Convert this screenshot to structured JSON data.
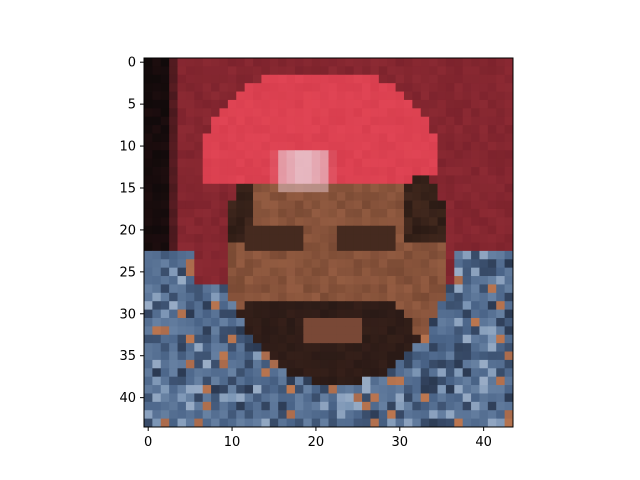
{
  "chart_data": {
    "type": "heatmap",
    "title": "",
    "xlabel": "",
    "ylabel": "",
    "image_shape": [
      44,
      44
    ],
    "xlim": [
      -0.5,
      43.5
    ],
    "ylim": [
      43.5,
      -0.5
    ],
    "x_ticks": [
      0,
      10,
      20,
      30,
      40
    ],
    "y_ticks": [
      0,
      5,
      10,
      15,
      20,
      25,
      30,
      35,
      40
    ],
    "x_tick_labels": [
      "0",
      "10",
      "20",
      "30",
      "40"
    ],
    "y_tick_labels": [
      "0",
      "5",
      "10",
      "15",
      "20",
      "25",
      "30",
      "35",
      "40"
    ],
    "grid": false,
    "palette": {
      "background_red": "#8c2a33",
      "left_dark_edge": "#0a0808",
      "cap_red": "#d83e4e",
      "cap_highlight": "#e8c8d0",
      "hair_dark": "#2a1a14",
      "skin": "#7a4a34",
      "skin_light": "#a86a4c",
      "beard": "#2a1a16",
      "jacket_blue": "#4a6488",
      "jacket_light": "#7a94b4",
      "jacket_dark": "#2a3850"
    }
  }
}
